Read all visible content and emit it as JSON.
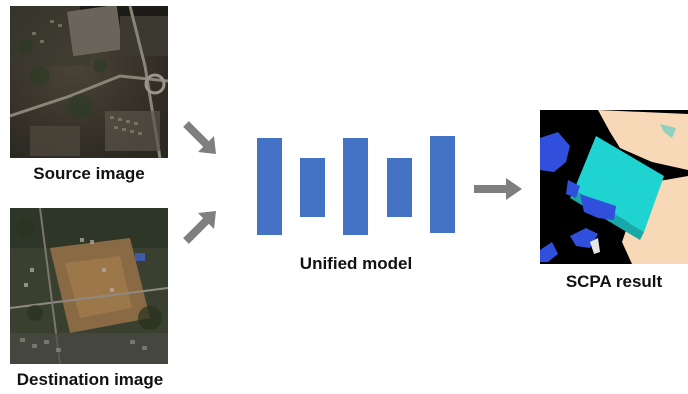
{
  "source": {
    "caption": "Source image"
  },
  "destination": {
    "caption": "Destination image"
  },
  "model": {
    "caption": "Unified model"
  },
  "result": {
    "caption": "SCPA result"
  },
  "colors": {
    "bar": "#4472c4",
    "arrow": "#7f7f7f",
    "class_blue": "#2f4fdc",
    "class_cyan": "#1fd3d0",
    "class_peach": "#f7d9b8",
    "background": "#000000"
  },
  "icons": {
    "arrow_source": "arrow-down-right-icon",
    "arrow_destination": "arrow-up-right-icon",
    "arrow_result": "arrow-right-icon"
  }
}
